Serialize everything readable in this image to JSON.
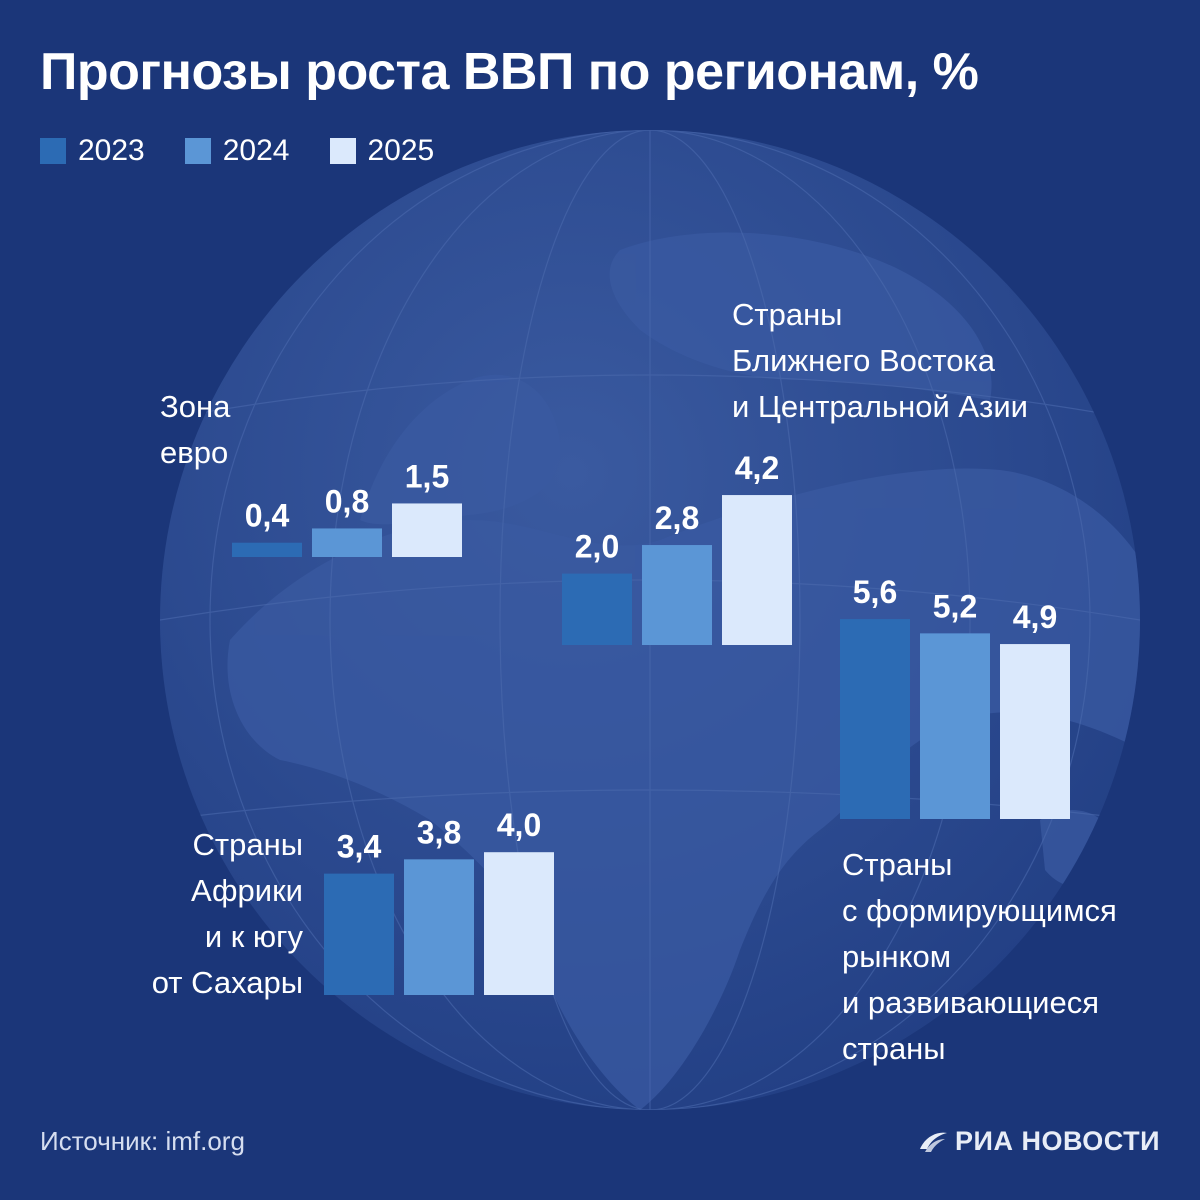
{
  "title": "Прогнозы роста ВВП по регионам, %",
  "source": "Источник: imf.org",
  "brand": "РИА НОВОСТИ",
  "brand_logo_icon": "ria-swoosh-icon",
  "background_icon": "globe-icon",
  "colors": {
    "background": "#1b3679",
    "globe": "#2a4a8e",
    "land": "#34539a",
    "year_2023": "#2c6bb4",
    "year_2024": "#5b96d6",
    "year_2025": "#dbe9fc"
  },
  "legend": [
    {
      "label": "2023",
      "color": "#2c6bb4"
    },
    {
      "label": "2024",
      "color": "#5b96d6"
    },
    {
      "label": "2025",
      "color": "#dbe9fc"
    }
  ],
  "chart_data": {
    "type": "bar",
    "title": "Прогнозы роста ВВП по регионам, %",
    "categories": [
      "2023",
      "2024",
      "2025"
    ],
    "groups": [
      {
        "id": "eurozone",
        "label": [
          "Зона",
          "евро"
        ],
        "values": [
          0.4,
          0.8,
          1.5
        ],
        "value_labels": [
          "0,4",
          "0,8",
          "1,5"
        ]
      },
      {
        "id": "middle-east",
        "label": [
          "Страны",
          "Ближнего Востока",
          "и Центральной Азии"
        ],
        "values": [
          2.0,
          2.8,
          4.2
        ],
        "value_labels": [
          "2,0",
          "2,8",
          "4,2"
        ]
      },
      {
        "id": "emerging",
        "label": [
          "Страны",
          "с формирующимся",
          "рынком",
          "и развивающиеся",
          "страны"
        ],
        "values": [
          5.6,
          5.2,
          4.9
        ],
        "value_labels": [
          "5,6",
          "5,2",
          "4,9"
        ]
      },
      {
        "id": "sub-saharan",
        "label": [
          "Страны",
          "Африки",
          "и к югу",
          "от Сахары"
        ],
        "values": [
          3.4,
          3.8,
          4.0
        ],
        "value_labels": [
          "3,4",
          "3,8",
          "4,0"
        ]
      }
    ]
  }
}
